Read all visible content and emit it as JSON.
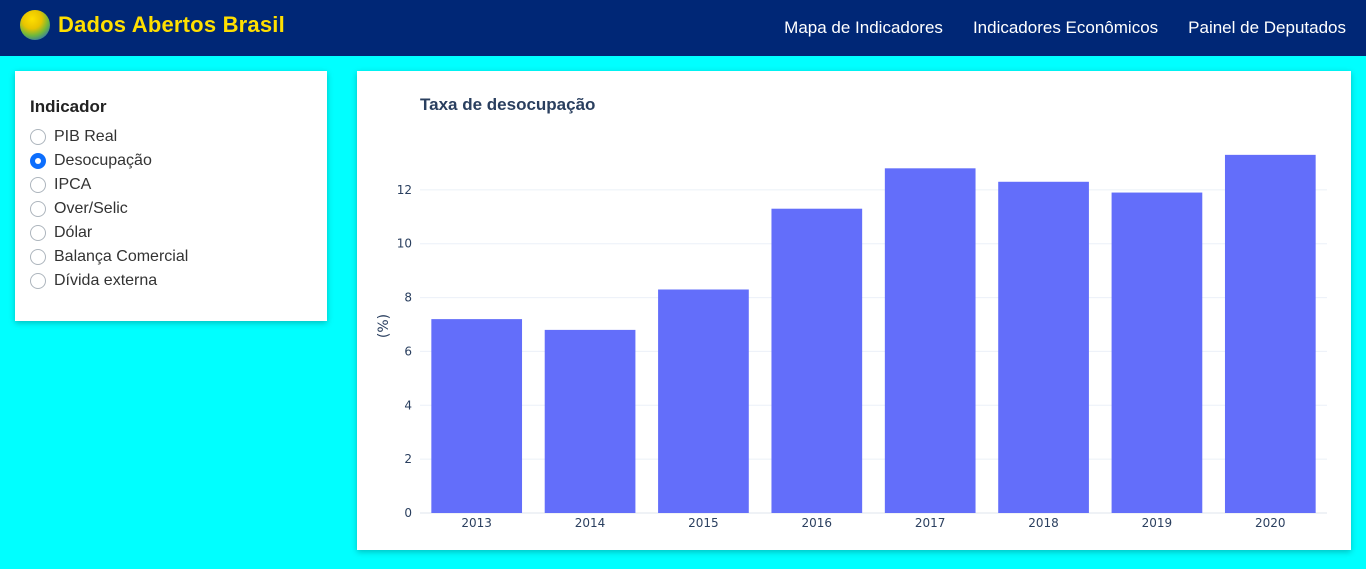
{
  "header": {
    "brand": "Dados Abertos Brasil",
    "logo_icon": "brazil-globe-icon",
    "nav": [
      "Mapa de Indicadores",
      "Indicadores Econômicos",
      "Painel de Deputados"
    ]
  },
  "sidebar": {
    "title": "Indicador",
    "options": [
      "PIB Real",
      "Desocupação",
      "IPCA",
      "Over/Selic",
      "Dólar",
      "Balança Comercial",
      "Dívida externa"
    ],
    "selected": "Desocupação"
  },
  "colors": {
    "navbar": "#002776",
    "brand": "#ffdf00",
    "background": "#00ffff",
    "bar": "#636efa",
    "accent": "#0d6efd"
  },
  "chart_data": {
    "type": "bar",
    "title": "Taxa de desocupação",
    "ylabel": "(%)",
    "xlabel": "",
    "categories": [
      "2013",
      "2014",
      "2015",
      "2016",
      "2017",
      "2018",
      "2019",
      "2020"
    ],
    "values": [
      7.2,
      6.8,
      8.3,
      11.3,
      12.8,
      12.3,
      11.9,
      13.3
    ],
    "yticks": [
      0,
      2,
      4,
      6,
      8,
      10,
      12
    ],
    "ylim": [
      0,
      14
    ],
    "grid": true
  }
}
